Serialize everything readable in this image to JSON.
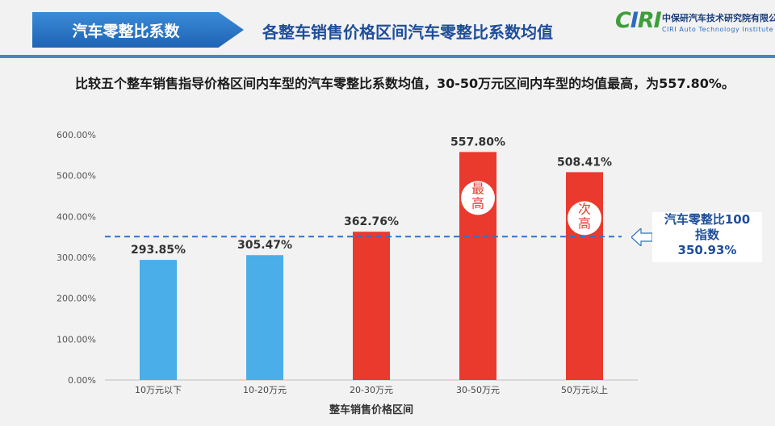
{
  "header": {
    "tab_label": "汽车零整比系数",
    "title": "各整车销售价格区间汽车零整比系数均值"
  },
  "logo": {
    "mark": "CIRI",
    "cn": "中保研汽车技术研究院有限公司",
    "en": "CIRI Auto Technology Institute"
  },
  "description": "比较五个整车销售指导价格区间内车型的汽车零整比系数均值，30-50万元区间内车型的均值最高，为557.80%。",
  "callout": {
    "line1": "汽车零整比100",
    "line2": "指数",
    "line3": "350.93%"
  },
  "colors": {
    "blue_bar": "#4aaee8",
    "red_bar": "#ea3a2d",
    "reference_line": "#2f73c7",
    "accent": "#1f4e9a"
  },
  "chart_data": {
    "type": "bar",
    "categories": [
      "10万元以下",
      "10-20万元",
      "20-30万元",
      "30-50万元",
      "50万元以上"
    ],
    "values": [
      293.85,
      305.47,
      362.76,
      557.8,
      508.41
    ],
    "value_labels": [
      "293.85%",
      "305.47%",
      "362.76%",
      "557.80%",
      "508.41%"
    ],
    "bar_colors": [
      "blue",
      "blue",
      "red",
      "red",
      "red"
    ],
    "badges": [
      null,
      null,
      null,
      "最高",
      "次高"
    ],
    "xlabel": "整车销售价格区间",
    "ylabel": "",
    "ylim": [
      0,
      600
    ],
    "yticks": [
      0,
      100,
      200,
      300,
      400,
      500,
      600
    ],
    "ytick_labels": [
      "0.00%",
      "100.00%",
      "200.00%",
      "300.00%",
      "400.00%",
      "500.00%",
      "600.00%"
    ],
    "reference_line": {
      "value": 350.93,
      "style": "dashed"
    },
    "grid": false,
    "legend": "none"
  }
}
